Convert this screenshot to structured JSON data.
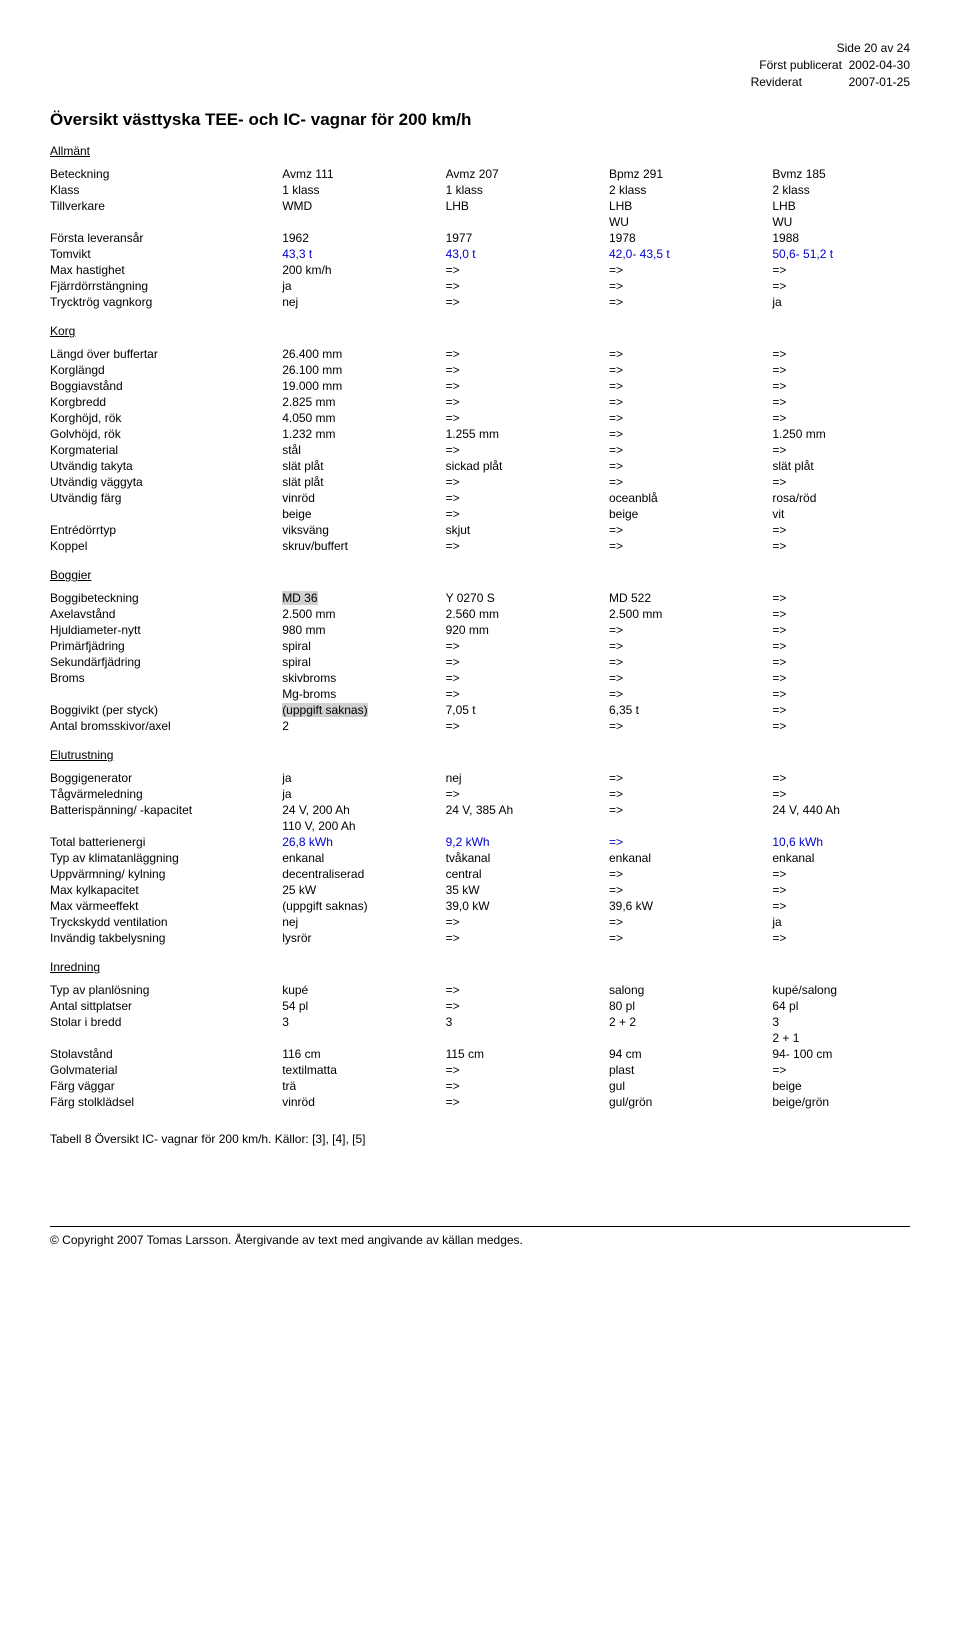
{
  "header": {
    "page": "Side 20 av 24",
    "pub_label": "Först publicerat",
    "pub_date": "2002-04-30",
    "rev_label": "Reviderat",
    "rev_date": "2007-01-25"
  },
  "title": "Översikt västtyska TEE- och IC- vagnar för 200 km/h",
  "colors": {
    "link": "#0000cc",
    "highlight": "#d0d0d0"
  },
  "sections": {
    "allmant": {
      "title": "Allmänt",
      "rows": [
        [
          "Beteckning",
          "Avmz 111",
          "Avmz 207",
          "Bpmz 291",
          "Bvmz 185"
        ],
        [
          "Klass",
          "1 klass",
          "1 klass",
          "2 klass",
          "2 klass"
        ],
        [
          "Tillverkare",
          "WMD",
          "LHB",
          "LHB",
          "LHB"
        ],
        [
          "",
          "",
          "",
          "WU",
          "WU"
        ],
        [
          "Första leveransår",
          "1962",
          "1977",
          "1978",
          "1988"
        ],
        [
          "Tomvikt",
          "43,3 t",
          "43,0 t",
          "42,0- 43,5 t",
          "50,6- 51,2 t"
        ],
        [
          "Max hastighet",
          "200 km/h",
          "=>",
          "=>",
          "=>"
        ],
        [
          "Fjärrdörrstängning",
          "ja",
          "=>",
          "=>",
          "=>"
        ],
        [
          "Trycktrög vagnkorg",
          "nej",
          "=>",
          "=>",
          "ja"
        ]
      ],
      "blue_rows": [
        5
      ]
    },
    "korg": {
      "title": "Korg",
      "rows": [
        [
          "Längd över buffertar",
          "26.400 mm",
          "=>",
          "=>",
          "=>"
        ],
        [
          "Korglängd",
          "26.100 mm",
          "=>",
          "=>",
          "=>"
        ],
        [
          "Boggiavstånd",
          "19.000 mm",
          "=>",
          "=>",
          "=>"
        ],
        [
          "Korgbredd",
          "2.825 mm",
          "=>",
          "=>",
          "=>"
        ],
        [
          "Korghöjd, rök",
          "4.050 mm",
          "=>",
          "=>",
          "=>"
        ],
        [
          "Golvhöjd, rök",
          "1.232 mm",
          "1.255 mm",
          "=>",
          "1.250 mm"
        ],
        [
          "Korgmaterial",
          "stål",
          "=>",
          "=>",
          "=>"
        ],
        [
          "Utvändig takyta",
          "slät plåt",
          "sickad plåt",
          "=>",
          "slät plåt"
        ],
        [
          "Utvändig väggyta",
          "slät plåt",
          "=>",
          "=>",
          "=>"
        ],
        [
          "Utvändig färg",
          "vinröd",
          "=>",
          "oceanblå",
          "rosa/röd"
        ],
        [
          "",
          "beige",
          "=>",
          "beige",
          "vit"
        ],
        [
          "Entrédörrtyp",
          "viksväng",
          "skjut",
          "=>",
          "=>"
        ],
        [
          "Koppel",
          "skruv/buffert",
          "=>",
          "=>",
          "=>"
        ]
      ],
      "blue_rows": []
    },
    "boggier": {
      "title": "Boggier",
      "rows": [
        [
          "Boggibeteckning",
          "MD 36",
          "Y 0270 S",
          "MD 522",
          "=>"
        ],
        [
          "Axelavstånd",
          "2.500 mm",
          "2.560 mm",
          "2.500 mm",
          "=>"
        ],
        [
          "Hjuldiameter-nytt",
          "980 mm",
          "920 mm",
          "=>",
          "=>"
        ],
        [
          "Primärfjädring",
          "spiral",
          "=>",
          "=>",
          "=>"
        ],
        [
          "Sekundärfjädring",
          "spiral",
          "=>",
          "=>",
          "=>"
        ],
        [
          "Broms",
          "skivbroms",
          "=>",
          "=>",
          "=>"
        ],
        [
          "",
          "Mg-broms",
          "=>",
          "=>",
          "=>"
        ],
        [
          "Boggivikt (per styck)",
          "(uppgift saknas)",
          "7,05 t",
          "6,35 t",
          "=>"
        ],
        [
          "Antal bromsskivor/axel",
          "2",
          "=>",
          "=>",
          "=>"
        ]
      ],
      "blue_rows": [],
      "highlight": {
        "0": [
          1
        ],
        "7": [
          1
        ]
      }
    },
    "elutrustning": {
      "title": "Elutrustning",
      "rows": [
        [
          "Boggigenerator",
          "ja",
          "nej",
          "=>",
          "=>"
        ],
        [
          "Tågvärmeledning",
          "ja",
          "=>",
          "=>",
          "=>"
        ],
        [
          "Batterispänning/ -kapacitet",
          "24 V, 200 Ah",
          "24 V, 385 Ah",
          "=>",
          "24 V, 440 Ah"
        ],
        [
          "",
          "110 V, 200 Ah",
          "",
          "",
          ""
        ],
        [
          "Total batterienergi",
          "26,8 kWh",
          "9,2 kWh",
          "=>",
          "10,6 kWh"
        ],
        [
          "Typ av klimatanläggning",
          "enkanal",
          "tvåkanal",
          "enkanal",
          "enkanal"
        ],
        [
          "Uppvärmning/ kylning",
          "decentraliserad",
          "central",
          "=>",
          "=>"
        ],
        [
          "Max kylkapacitet",
          "25 kW",
          "35 kW",
          "=>",
          "=>"
        ],
        [
          "Max värmeeffekt",
          "(uppgift saknas)",
          "39,0 kW",
          "39,6 kW",
          "=>"
        ],
        [
          "Tryckskydd ventilation",
          "nej",
          "=>",
          "=>",
          "ja"
        ],
        [
          "Invändig takbelysning",
          "lysrör",
          "=>",
          "=>",
          "=>"
        ]
      ],
      "blue_rows": [
        4
      ]
    },
    "inredning": {
      "title": "Inredning",
      "rows": [
        [
          "Typ av planlösning",
          "kupé",
          "=>",
          "salong",
          "kupé/salong"
        ],
        [
          "Antal sittplatser",
          "54 pl",
          "=>",
          "80 pl",
          "64 pl"
        ],
        [
          "Stolar i bredd",
          "3",
          "3",
          "2 + 2",
          "3"
        ],
        [
          "",
          "",
          "",
          "",
          "2 + 1"
        ],
        [
          "Stolavstånd",
          "116 cm",
          "115 cm",
          "94 cm",
          "94- 100 cm"
        ],
        [
          "Golvmaterial",
          "textilmatta",
          "=>",
          "plast",
          "=>"
        ],
        [
          "Färg väggar",
          "trä",
          "=>",
          "gul",
          "beige"
        ],
        [
          "Färg stolklädsel",
          "vinröd",
          "=>",
          "gul/grön",
          "beige/grön"
        ]
      ],
      "blue_rows": []
    }
  },
  "caption": "Tabell 8  Översikt IC- vagnar för 200 km/h. Källor: [3], [4], [5]",
  "footer": "© Copyright 2007 Tomas Larsson. Återgivande av text med angivande av källan medges."
}
